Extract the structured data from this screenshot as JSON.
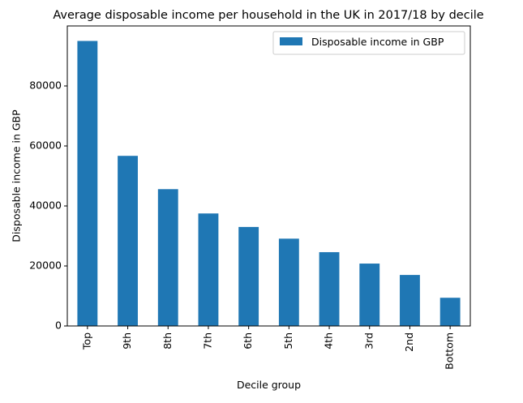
{
  "chart_data": {
    "type": "bar",
    "title": "Average disposable income per household in the UK in 2017/18 by decile",
    "xlabel": "Decile group",
    "ylabel": "Disposable income in GBP",
    "categories": [
      "Top",
      "9th",
      "8th",
      "7th",
      "6th",
      "5th",
      "4th",
      "3rd",
      "2nd",
      "Bottom"
    ],
    "series": [
      {
        "name": "Disposable income in GBP",
        "values": [
          95000,
          56700,
          45600,
          37500,
          33000,
          29100,
          24600,
          20800,
          17000,
          9400
        ]
      }
    ],
    "ylim": [
      0,
      100000
    ],
    "yticks": [
      0,
      20000,
      40000,
      60000,
      80000
    ],
    "ytick_labels": [
      "0",
      "20000",
      "40000",
      "60000",
      "80000"
    ],
    "grid": false,
    "legend_position": "top-right",
    "colors": {
      "bar": "#1f77b4"
    }
  }
}
